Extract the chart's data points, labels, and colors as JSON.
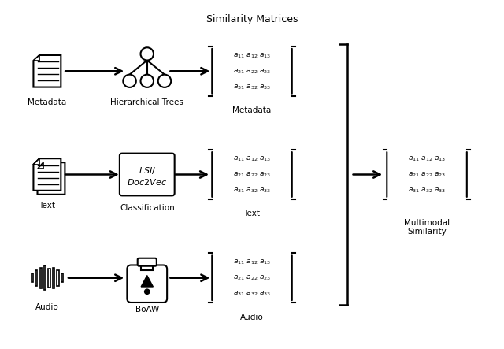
{
  "title": "Similarity Matrices",
  "bg_color": "#ffffff",
  "text_color": "#000000",
  "figsize": [
    6.4,
    4.43
  ],
  "dpi": 100,
  "matrix_text": "$\\it{a}_{11}\\,\\it{a}_{12}\\,\\it{a}_{13}$\n$\\it{a}_{21}\\,\\it{a}_{22}\\,\\it{a}_{23}$\n$\\it{a}_{31}\\,\\it{a}_{32}\\,\\it{a}_{33}$",
  "labels": {
    "metadata": "Metadata",
    "hierarchical": "Hierarchical Trees",
    "metadata_mat": "Metadata",
    "text": "Text",
    "classification": "Classification",
    "text_mat": "Text",
    "audio": "Audio",
    "boaw": "BoAW",
    "audio_mat": "Audio",
    "multimodal": "Multimodal\nSimilarity"
  }
}
